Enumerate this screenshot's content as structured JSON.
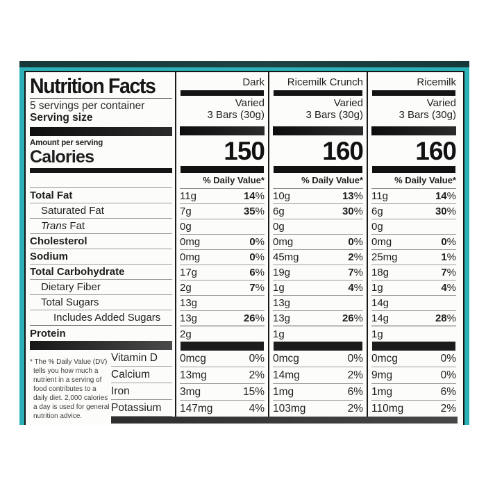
{
  "header": {
    "title": "Nutrition Facts",
    "servings_per_container": "5 servings per container",
    "serving_size_label": "Serving size",
    "amount_per_serving": "Amount per serving",
    "calories_label": "Calories",
    "daily_value_header": "% Daily Value*"
  },
  "columns": [
    {
      "name": "Dark",
      "serving_note": "Varied",
      "serving_size": "3 Bars (30g)",
      "calories": "150"
    },
    {
      "name": "Ricemilk Crunch",
      "serving_note": "Varied",
      "serving_size": "3 Bars (30g)",
      "calories": "160"
    },
    {
      "name": "Ricemilk",
      "serving_note": "Varied",
      "serving_size": "3 Bars (30g)",
      "calories": "160"
    }
  ],
  "nutrients": [
    {
      "label": "Total Fat",
      "bold": true,
      "indent": 0,
      "values": [
        {
          "amount": "11g",
          "dv": "14"
        },
        {
          "amount": "10g",
          "dv": "13"
        },
        {
          "amount": "11g",
          "dv": "14"
        }
      ]
    },
    {
      "label": "Saturated Fat",
      "bold": false,
      "indent": 1,
      "values": [
        {
          "amount": "7g",
          "dv": "35"
        },
        {
          "amount": "6g",
          "dv": "30"
        },
        {
          "amount": "6g",
          "dv": "30"
        }
      ]
    },
    {
      "label": "Trans Fat",
      "label_italic": "Trans",
      "label_rest": " Fat",
      "italic": true,
      "bold": false,
      "indent": 1,
      "values": [
        {
          "amount": "0g",
          "dv": ""
        },
        {
          "amount": "0g",
          "dv": ""
        },
        {
          "amount": "0g",
          "dv": ""
        }
      ]
    },
    {
      "label": "Cholesterol",
      "bold": true,
      "indent": 0,
      "values": [
        {
          "amount": "0mg",
          "dv": "0"
        },
        {
          "amount": "0mg",
          "dv": "0"
        },
        {
          "amount": "0mg",
          "dv": "0"
        }
      ]
    },
    {
      "label": "Sodium",
      "bold": true,
      "indent": 0,
      "values": [
        {
          "amount": "0mg",
          "dv": "0"
        },
        {
          "amount": "45mg",
          "dv": "2"
        },
        {
          "amount": "25mg",
          "dv": "1"
        }
      ]
    },
    {
      "label": "Total Carbohydrate",
      "bold": true,
      "indent": 0,
      "values": [
        {
          "amount": "17g",
          "dv": "6"
        },
        {
          "amount": "19g",
          "dv": "7"
        },
        {
          "amount": "18g",
          "dv": "7"
        }
      ]
    },
    {
      "label": "Dietary Fiber",
      "bold": false,
      "indent": 1,
      "values": [
        {
          "amount": "2g",
          "dv": "7"
        },
        {
          "amount": "1g",
          "dv": "4"
        },
        {
          "amount": "1g",
          "dv": "4"
        }
      ]
    },
    {
      "label": "Total Sugars",
      "bold": false,
      "indent": 1,
      "values": [
        {
          "amount": "13g",
          "dv": ""
        },
        {
          "amount": "13g",
          "dv": ""
        },
        {
          "amount": "14g",
          "dv": ""
        }
      ]
    },
    {
      "label": "Includes Added Sugars",
      "bold": false,
      "indent": 2,
      "rule_after": "strong",
      "values": [
        {
          "amount": "13g",
          "dv": "26"
        },
        {
          "amount": "13g",
          "dv": "26"
        },
        {
          "amount": "14g",
          "dv": "28"
        }
      ]
    },
    {
      "label": "Protein",
      "bold": true,
      "indent": 0,
      "no_rule": true,
      "values": [
        {
          "amount": "2g",
          "dv": ""
        },
        {
          "amount": "1g",
          "dv": ""
        },
        {
          "amount": "1g",
          "dv": ""
        }
      ]
    }
  ],
  "vitamins": [
    {
      "label": "Vitamin D",
      "values": [
        {
          "amount": "0mcg",
          "dv": "0"
        },
        {
          "amount": "0mcg",
          "dv": "0"
        },
        {
          "amount": "0mcg",
          "dv": "0"
        }
      ]
    },
    {
      "label": "Calcium",
      "values": [
        {
          "amount": "13mg",
          "dv": "2"
        },
        {
          "amount": "14mg",
          "dv": "2"
        },
        {
          "amount": "9mg",
          "dv": "0"
        }
      ]
    },
    {
      "label": "Iron",
      "values": [
        {
          "amount": "3mg",
          "dv": "15"
        },
        {
          "amount": "1mg",
          "dv": "6"
        },
        {
          "amount": "1mg",
          "dv": "6"
        }
      ]
    },
    {
      "label": "Potassium",
      "values": [
        {
          "amount": "147mg",
          "dv": "4"
        },
        {
          "amount": "103mg",
          "dv": "2"
        },
        {
          "amount": "110mg",
          "dv": "2"
        }
      ]
    }
  ],
  "footnote": "* The % Daily Value (DV) tells you how much a nutrient in a serving of food contributes to a daily diet. 2,000 calories a day is used for general nutrition advice.",
  "misc": {
    "percent_sign": "%"
  },
  "colors": {
    "teal": "#2bb1b6",
    "top_band": "#16383a",
    "bar_black": "#141414",
    "bar_gray": "#474747"
  }
}
